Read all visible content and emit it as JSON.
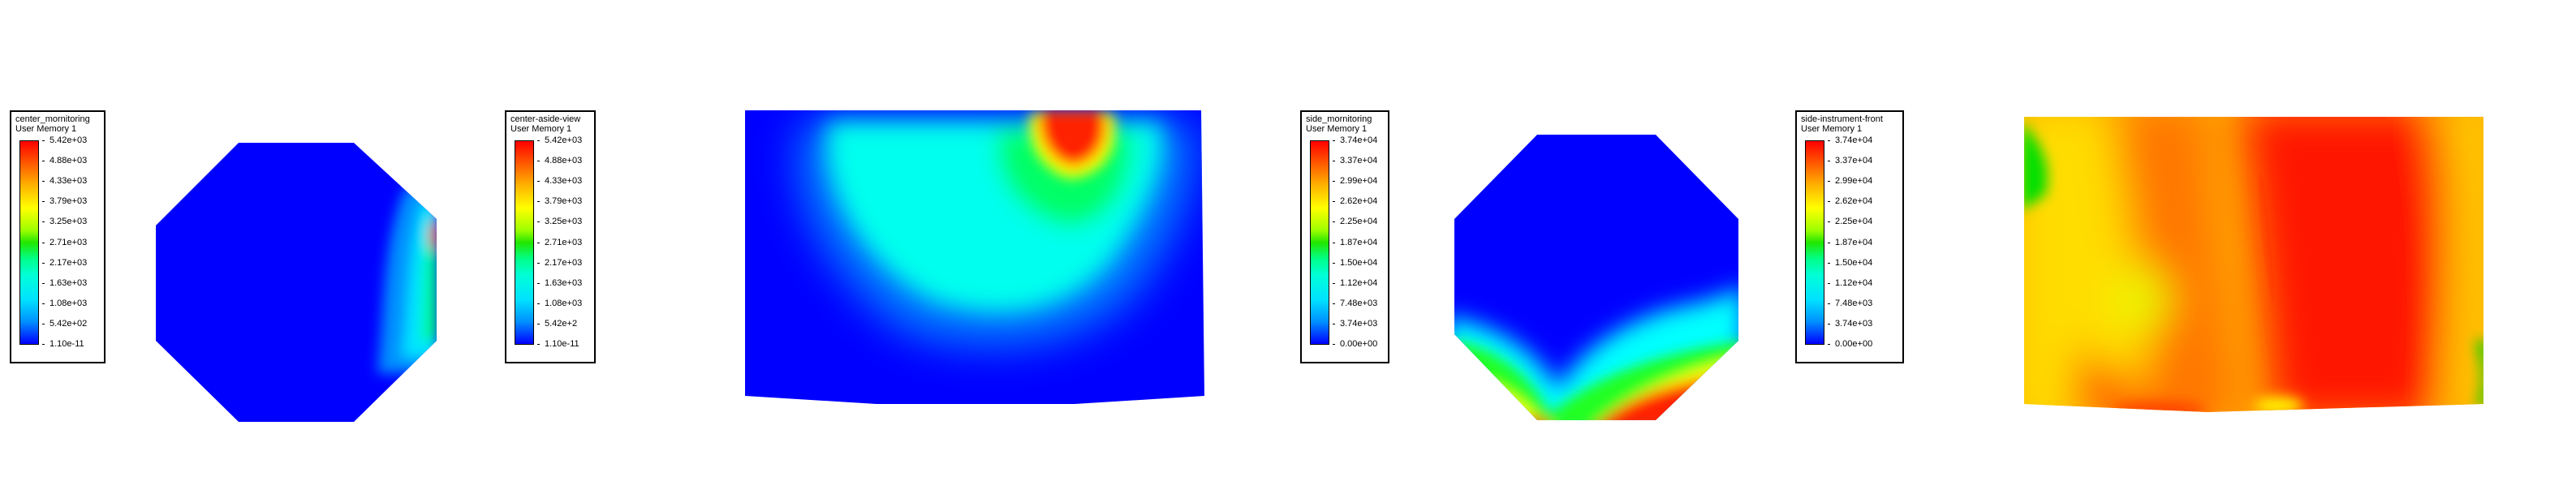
{
  "chart_data": [
    {
      "type": "heatmap",
      "title": "center_mornitoring",
      "subtitle": "User Memory 1",
      "ticks": [
        "5.42e+03",
        "4.88e+03",
        "4.33e+03",
        "3.79e+03",
        "3.25e+03",
        "2.71e+03",
        "2.17e+03",
        "1.63e+03",
        "1.08e+03",
        "5.42e+02",
        "1.10e-11"
      ],
      "vmin": 1.1e-11,
      "vmax": 5420,
      "legend_position": "left"
    },
    {
      "type": "heatmap",
      "title": "center-aside-view",
      "subtitle": "User Memory 1",
      "ticks": [
        "5.42e+03",
        "4.88e+03",
        "4.33e+03",
        "3.79e+03",
        "3.25e+03",
        "2.71e+03",
        "2.17e+03",
        "1.63e+03",
        "1.08e+03",
        "5.42e+2",
        "1.10e-11"
      ],
      "vmin": 1.1e-11,
      "vmax": 5420,
      "legend_position": "left"
    },
    {
      "type": "heatmap",
      "title": "side_mornitoring",
      "subtitle": "User Memory 1",
      "ticks": [
        "3.74e+04",
        "3.37e+04",
        "2.99e+04",
        "2.62e+04",
        "2.25e+04",
        "1.87e+04",
        "1.50e+04",
        "1.12e+04",
        "7.48e+03",
        "3.74e+03",
        "0.00e+00"
      ],
      "vmin": 0,
      "vmax": 37400,
      "legend_position": "left"
    },
    {
      "type": "heatmap",
      "title": "side-instrument-front",
      "subtitle": "User Memory 1",
      "ticks": [
        "3.74e+04",
        "3.37e+04",
        "2.99e+04",
        "2.62e+04",
        "2.25e+04",
        "1.87e+04",
        "1.50e+04",
        "1.12e+04",
        "7.48e+03",
        "3.74e+03",
        "0.00e+00"
      ],
      "vmin": 0,
      "vmax": 37400,
      "legend_position": "left"
    }
  ],
  "colors": {
    "low": "#0000ff",
    "cyan": "#00ffff",
    "green": "#00ff00",
    "yellow": "#ffff00",
    "orange": "#ff8000",
    "high": "#ff0000"
  }
}
